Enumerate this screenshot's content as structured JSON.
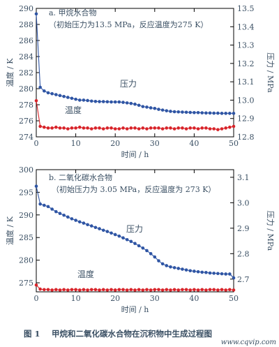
{
  "caption": {
    "number": "图 1",
    "text": "甲烷和二氧化碳水合物在沉积物中生成过程图"
  },
  "watermark": "www.cqvip.com",
  "colors": {
    "pressure": "#2f55a4",
    "temperature": "#d8242a",
    "text": "#3a4f63"
  },
  "chart_data": [
    {
      "type": "scatter",
      "panel_label": "a. 甲烷水合物",
      "subtitle": "（初始压力为13.5 MPa，反应温度为275 K）",
      "xlabel": "时间 / h",
      "ylabel_left": "温度 / K",
      "ylabel_right": "压力 / MPa",
      "xlim": [
        0,
        50
      ],
      "ylim_left": [
        274,
        290
      ],
      "ylim_right": [
        12.8,
        13.5
      ],
      "x_ticks": [
        0,
        10,
        20,
        30,
        40,
        50
      ],
      "y_ticks_left": [
        274,
        276,
        278,
        280,
        282,
        284,
        286,
        288,
        290
      ],
      "y_ticks_right": [
        12.8,
        12.9,
        13.0,
        13.1,
        13.2,
        13.3,
        13.4,
        13.5
      ],
      "grid": false,
      "series": [
        {
          "name": "压力",
          "axis": "right",
          "color": "#2f55a4",
          "x": [
            0,
            1,
            2,
            3,
            4,
            5,
            6,
            7,
            8,
            9,
            10,
            11,
            12,
            13,
            14,
            15,
            16,
            17,
            18,
            19,
            20,
            21,
            22,
            23,
            24,
            25,
            26,
            27,
            28,
            29,
            30,
            31,
            32,
            33,
            34,
            35,
            36,
            37,
            38,
            39,
            40,
            41,
            42,
            43,
            44,
            45,
            46,
            47,
            48,
            49,
            50
          ],
          "y": [
            13.47,
            13.07,
            13.05,
            13.04,
            13.035,
            13.03,
            13.025,
            13.02,
            13.015,
            13.01,
            13.005,
            13.0,
            13.0,
            12.998,
            12.995,
            12.993,
            12.992,
            12.992,
            12.991,
            12.99,
            12.99,
            12.99,
            12.988,
            12.985,
            12.982,
            12.978,
            12.972,
            12.965,
            12.962,
            12.958,
            12.955,
            12.95,
            12.946,
            12.942,
            12.939,
            12.937,
            12.936,
            12.935,
            12.934,
            12.933,
            12.932,
            12.932,
            12.931,
            12.93,
            12.93,
            12.929,
            12.929,
            12.928,
            12.928,
            12.928,
            12.928
          ]
        },
        {
          "name": "温度",
          "axis": "left",
          "color": "#d8242a",
          "x": [
            0,
            1,
            2,
            3,
            4,
            5,
            6,
            7,
            8,
            9,
            10,
            11,
            12,
            13,
            14,
            15,
            16,
            17,
            18,
            19,
            20,
            21,
            22,
            23,
            24,
            25,
            26,
            27,
            28,
            29,
            30,
            31,
            32,
            33,
            34,
            35,
            36,
            37,
            38,
            39,
            40,
            41,
            42,
            43,
            44,
            45,
            46,
            47,
            48,
            49,
            50
          ],
          "y": [
            278.5,
            275.3,
            275.2,
            275.1,
            275.1,
            275.2,
            275.1,
            275.1,
            275.0,
            275.1,
            275.1,
            275.2,
            275.1,
            275.1,
            275.0,
            275.1,
            275.1,
            275.0,
            275.1,
            275.1,
            275.0,
            275.0,
            275.1,
            275.0,
            275.1,
            275.1,
            275.0,
            275.1,
            275.0,
            275.1,
            275.1,
            275.1,
            275.0,
            275.1,
            275.1,
            275.0,
            275.1,
            275.1,
            275.0,
            275.1,
            275.1,
            275.0,
            275.1,
            275.1,
            275.0,
            275.0,
            274.9,
            275.0,
            275.1,
            275.2,
            275.3
          ]
        }
      ]
    },
    {
      "type": "scatter",
      "panel_label": "b. 二氧化碳水合物",
      "subtitle": "（初始压力为 3.05 MPa，反应温度为 273 K）",
      "xlabel": "时间 / h",
      "ylabel_left": "温度 / K",
      "ylabel_right": "压力 / MPa",
      "xlim": [
        0,
        50
      ],
      "ylim_left": [
        273,
        300
      ],
      "ylim_right": [
        2.65,
        3.13
      ],
      "x_ticks": [
        0,
        10,
        20,
        30,
        40,
        50
      ],
      "y_ticks_left": [
        275,
        280,
        285,
        290,
        295,
        300
      ],
      "y_ticks_right": [
        2.7,
        2.8,
        2.9,
        3.0,
        3.1
      ],
      "grid": false,
      "series": [
        {
          "name": "压力",
          "axis": "right",
          "color": "#2f55a4",
          "x": [
            0,
            1,
            2,
            3,
            4,
            5,
            6,
            7,
            8,
            9,
            10,
            11,
            12,
            13,
            14,
            15,
            16,
            17,
            18,
            19,
            20,
            21,
            22,
            23,
            24,
            25,
            26,
            27,
            28,
            29,
            30,
            31,
            32,
            33,
            34,
            35,
            36,
            37,
            38,
            39,
            40,
            41,
            42,
            43,
            44,
            45,
            46,
            47,
            48,
            49,
            50
          ],
          "y": [
            3.065,
            2.995,
            2.99,
            2.985,
            2.975,
            2.965,
            2.958,
            2.951,
            2.944,
            2.937,
            2.931,
            2.925,
            2.92,
            2.914,
            2.909,
            2.903,
            2.898,
            2.892,
            2.887,
            2.881,
            2.875,
            2.869,
            2.862,
            2.855,
            2.848,
            2.84,
            2.831,
            2.822,
            2.812,
            2.8,
            2.787,
            2.772,
            2.76,
            2.753,
            2.748,
            2.745,
            2.742,
            2.739,
            2.736,
            2.733,
            2.731,
            2.729,
            2.727,
            2.726,
            2.724,
            2.723,
            2.722,
            2.721,
            2.72,
            2.72,
            2.705
          ]
        },
        {
          "name": "温度",
          "axis": "left",
          "color": "#d8242a",
          "x": [
            0,
            1,
            2,
            3,
            4,
            5,
            6,
            7,
            8,
            9,
            10,
            11,
            12,
            13,
            14,
            15,
            16,
            17,
            18,
            19,
            20,
            21,
            22,
            23,
            24,
            25,
            26,
            27,
            28,
            29,
            30,
            31,
            32,
            33,
            34,
            35,
            36,
            37,
            38,
            39,
            40,
            41,
            42,
            43,
            44,
            45,
            46,
            47,
            48,
            49,
            50
          ],
          "y": [
            274.5,
            273.6,
            273.5,
            273.5,
            273.4,
            273.5,
            273.4,
            273.5,
            273.4,
            273.5,
            273.5,
            273.4,
            273.5,
            273.4,
            273.5,
            273.5,
            273.4,
            273.5,
            273.4,
            273.5,
            273.4,
            273.5,
            273.5,
            273.4,
            273.5,
            273.4,
            273.5,
            273.4,
            273.5,
            273.4,
            273.5,
            273.5,
            273.4,
            273.5,
            273.4,
            273.5,
            273.4,
            273.5,
            273.5,
            273.4,
            273.5,
            273.4,
            273.5,
            273.4,
            273.5,
            273.5,
            273.4,
            273.5,
            273.4,
            273.5,
            273.4
          ]
        }
      ]
    }
  ]
}
